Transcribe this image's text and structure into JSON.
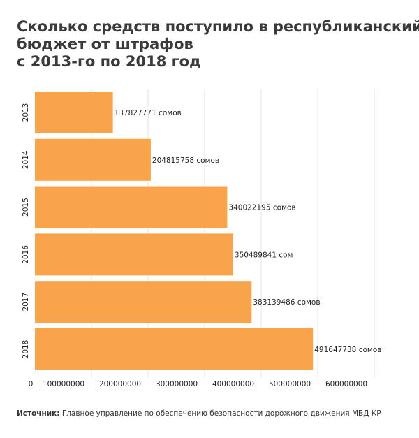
{
  "title": {
    "line1": "Сколько средств поступило в республиканский",
    "line2": "бюджет от штрафов",
    "line3": "с 2013-го по 2018 год"
  },
  "source": {
    "label": "Источник:",
    "text": "Главное управление по обеспечению безопасности дорожного движения МВД КР"
  },
  "colors": {
    "bar": "#F9A44A",
    "grid": "#e6e6e6",
    "text": "#222222"
  },
  "chart_data": {
    "type": "bar",
    "orientation": "horizontal",
    "title": "Сколько средств поступило в республиканский бюджет от штрафов с 2013-го по 2018 год",
    "categories": [
      "2013",
      "2014",
      "2015",
      "2016",
      "2017",
      "2018"
    ],
    "values": [
      137827771,
      204815758,
      340022195,
      350489841,
      383139486,
      491647738
    ],
    "data_labels": [
      "137827771 сомов",
      "204815758 сомов",
      "340022195 сомов",
      "350489841 сом",
      "383139486 сомов",
      "491647738 сомов"
    ],
    "xticks": [
      0,
      100000000,
      200000000,
      300000000,
      400000000,
      500000000,
      600000000
    ],
    "xtick_labels": [
      "0",
      "100000000",
      "200000000",
      "300000000",
      "400000000",
      "500000000",
      "600000000"
    ],
    "xlim": [
      0,
      600000000
    ],
    "grid": true,
    "xlabel": "",
    "ylabel": ""
  }
}
